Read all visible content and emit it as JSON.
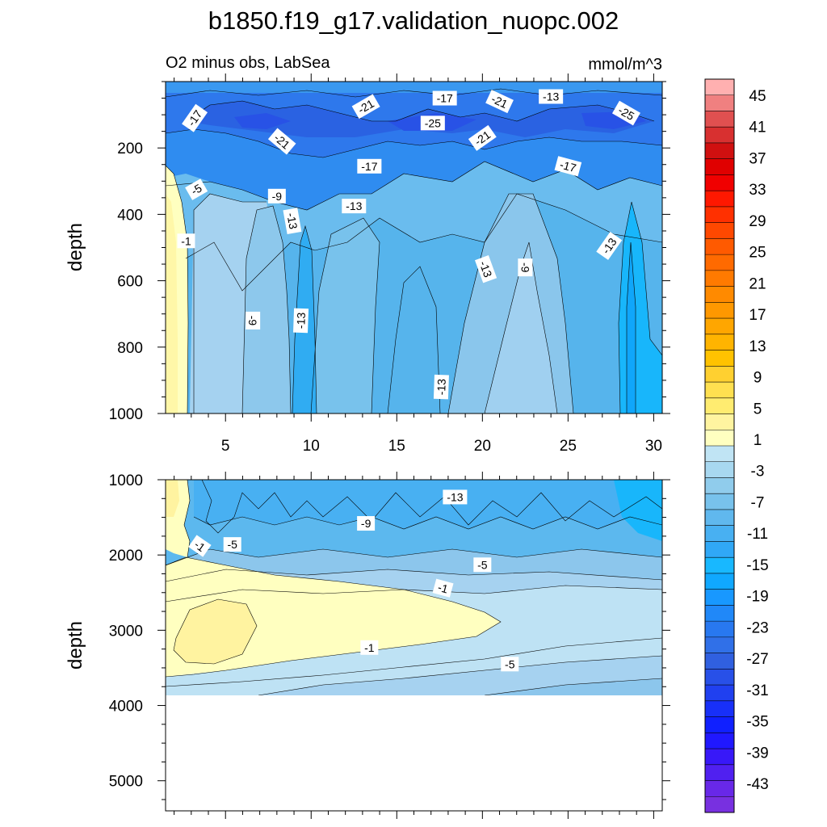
{
  "chart_data": {
    "type": "contour",
    "title": "b1850.f19_g17.validation_nuopc.002",
    "subtitle_left": "O2 minus obs, LabSea",
    "subtitle_right": "mmol/m^3",
    "x_label": "",
    "x_range": [
      1.5,
      30.5
    ],
    "x_ticks": [
      "5",
      "10",
      "15",
      "20",
      "25",
      "30"
    ],
    "x_tick_values": [
      5,
      10,
      15,
      20,
      25,
      30
    ],
    "panels": [
      {
        "name": "upper-ocean",
        "ylabel": "depth",
        "y_range": [
          0,
          1000
        ],
        "y_ticks": [
          "200",
          "400",
          "600",
          "800",
          "1000"
        ],
        "y_tick_values": [
          200,
          400,
          600,
          800,
          1000
        ],
        "contour_labels": [
          {
            "text": "-17",
            "x": 3.2,
            "y": 110,
            "rot": -55
          },
          {
            "text": "-21",
            "x": 13.2,
            "y": 75,
            "rot": -30
          },
          {
            "text": "-17",
            "x": 17.8,
            "y": 50,
            "rot": 0
          },
          {
            "text": "-21",
            "x": 21.0,
            "y": 60,
            "rot": 25
          },
          {
            "text": "-13",
            "x": 24.0,
            "y": 45,
            "rot": 0
          },
          {
            "text": "-25",
            "x": 28.4,
            "y": 95,
            "rot": 30
          },
          {
            "text": "-25",
            "x": 17.1,
            "y": 125,
            "rot": 0
          },
          {
            "text": "-21",
            "x": 8.3,
            "y": 180,
            "rot": 40
          },
          {
            "text": "-21",
            "x": 20.0,
            "y": 170,
            "rot": -35
          },
          {
            "text": "-17",
            "x": 13.4,
            "y": 255,
            "rot": 0
          },
          {
            "text": "-17",
            "x": 25.0,
            "y": 255,
            "rot": 15
          },
          {
            "text": "-5",
            "x": 3.3,
            "y": 325,
            "rot": -30
          },
          {
            "text": "-9",
            "x": 8.0,
            "y": 345,
            "rot": 0
          },
          {
            "text": "-13",
            "x": 12.5,
            "y": 375,
            "rot": 0
          },
          {
            "text": "-13",
            "x": 8.9,
            "y": 420,
            "rot": 80
          },
          {
            "text": "-1",
            "x": 2.7,
            "y": 480,
            "rot": 0
          },
          {
            "text": "-13",
            "x": 20.2,
            "y": 565,
            "rot": 70
          },
          {
            "text": "-9",
            "x": 22.5,
            "y": 560,
            "rot": 90
          },
          {
            "text": "-13",
            "x": 27.4,
            "y": 495,
            "rot": -55
          },
          {
            "text": "-9",
            "x": 6.6,
            "y": 720,
            "rot": 90
          },
          {
            "text": "-13",
            "x": 9.4,
            "y": 720,
            "rot": -88
          },
          {
            "text": "-13",
            "x": 17.6,
            "y": 920,
            "rot": -88
          }
        ]
      },
      {
        "name": "deep-ocean",
        "ylabel": "depth",
        "y_range": [
          1000,
          5400
        ],
        "y_ticks": [
          "1000",
          "2000",
          "3000",
          "4000",
          "5000"
        ],
        "y_tick_values": [
          1000,
          2000,
          3000,
          4000,
          5000
        ],
        "data_bottom": 3850,
        "contour_labels": [
          {
            "text": "-13",
            "x": 18.4,
            "y": 1230,
            "rot": 0
          },
          {
            "text": "-9",
            "x": 13.2,
            "y": 1580,
            "rot": 0
          },
          {
            "text": "-1",
            "x": 3.5,
            "y": 1880,
            "rot": 35
          },
          {
            "text": "-5",
            "x": 5.4,
            "y": 1860,
            "rot": 0
          },
          {
            "text": "-5",
            "x": 20.0,
            "y": 2130,
            "rot": 0
          },
          {
            "text": "-1",
            "x": 17.7,
            "y": 2440,
            "rot": 15
          },
          {
            "text": "-1",
            "x": 13.4,
            "y": 3230,
            "rot": 0
          },
          {
            "text": "-5",
            "x": 21.6,
            "y": 3450,
            "rot": 0
          }
        ]
      }
    ],
    "colorbar": {
      "labels": [
        "45",
        "41",
        "37",
        "33",
        "29",
        "25",
        "21",
        "17",
        "13",
        "9",
        "5",
        "1",
        "-3",
        "-7",
        "-11",
        "-15",
        "-19",
        "-23",
        "-27",
        "-31",
        "-35",
        "-39",
        "-43"
      ],
      "colors": [
        "#FFB0B0",
        "#F08080",
        "#E05050",
        "#D83030",
        "#D01010",
        "#E00000",
        "#F00000",
        "#FF1800",
        "#FF3000",
        "#FF4800",
        "#FF5A00",
        "#FF6A00",
        "#FF7A00",
        "#FF8A00",
        "#FF9800",
        "#FFA600",
        "#FFB400",
        "#FFC200",
        "#FFD030",
        "#FFE050",
        "#FFEC70",
        "#FFF4A0",
        "#FFFFC0",
        "#C0E4F4",
        "#A8D8F0",
        "#90CCEC",
        "#78C2EC",
        "#60B8EE",
        "#48B0F2",
        "#30A8F6",
        "#18B8FF",
        "#10A8FF",
        "#1898FF",
        "#2088F8",
        "#2878F0",
        "#3070E8",
        "#3060E0",
        "#2850E8",
        "#2040F0",
        "#1830F8",
        "#1020FF",
        "#2018FF",
        "#3818F8",
        "#5020F0",
        "#6828E8",
        "#7830E0"
      ]
    }
  }
}
